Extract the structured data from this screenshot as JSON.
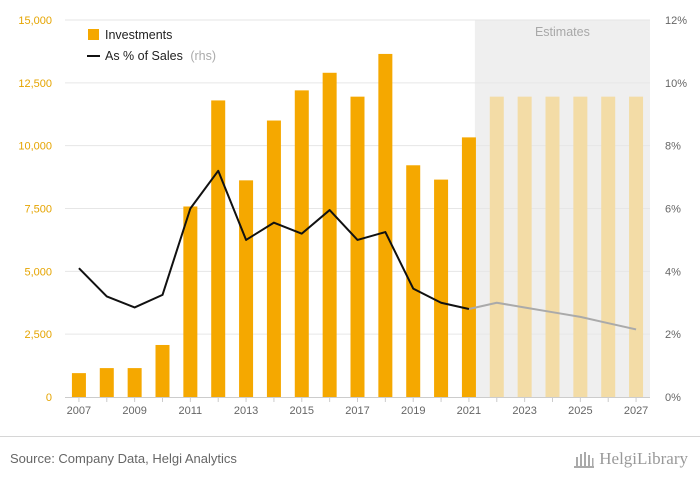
{
  "chart_data": {
    "type": "bar",
    "categories": [
      "2007",
      "2008",
      "2009",
      "2010",
      "2011",
      "2012",
      "2013",
      "2014",
      "2015",
      "2016",
      "2017",
      "2018",
      "2019",
      "2020",
      "2021",
      "2022",
      "2023",
      "2024",
      "2025",
      "2026",
      "2027"
    ],
    "series": [
      {
        "name": "Investments",
        "type": "bar",
        "axis": "left",
        "color": "#f5a800",
        "estimate_color": "#f3dca6",
        "values": [
          950,
          1150,
          1150,
          2070,
          7580,
          11800,
          8620,
          11000,
          12200,
          12900,
          11950,
          13650,
          9220,
          8650,
          10330,
          11950,
          11950,
          11950,
          11950,
          11950,
          11950
        ]
      },
      {
        "name": "As % of Sales",
        "name_suffix": "(rhs)",
        "type": "line",
        "axis": "right",
        "color": "#111111",
        "estimate_color": "#aaaaaa",
        "values": [
          4.1,
          3.2,
          2.85,
          3.25,
          6.0,
          7.2,
          5.0,
          5.55,
          5.2,
          5.95,
          5.0,
          5.25,
          3.45,
          3.0,
          2.8,
          3.0,
          2.85,
          2.7,
          2.55,
          2.35,
          2.15
        ]
      }
    ],
    "estimate_start_index": 15,
    "estimate_label": "Estimates",
    "x_tick_labels": [
      "2007",
      "2009",
      "2011",
      "2013",
      "2015",
      "2017",
      "2019",
      "2021",
      "2023",
      "2025",
      "2027"
    ],
    "y_left": {
      "ticks": [
        "0",
        "2,500",
        "5,000",
        "7,500",
        "10,000",
        "12,500",
        "15,000"
      ],
      "ylim": [
        0,
        15000
      ]
    },
    "y_right": {
      "ticks": [
        "0%",
        "2%",
        "4%",
        "6%",
        "8%",
        "10%",
        "12%"
      ],
      "ylim": [
        0,
        12
      ]
    },
    "grid": true,
    "legend_position": "top-left",
    "title": "",
    "xlabel": "",
    "ylabel": ""
  },
  "footer": {
    "source": "Source: Company Data, Helgi Analytics",
    "logo_text": "HelgiLibrary"
  }
}
